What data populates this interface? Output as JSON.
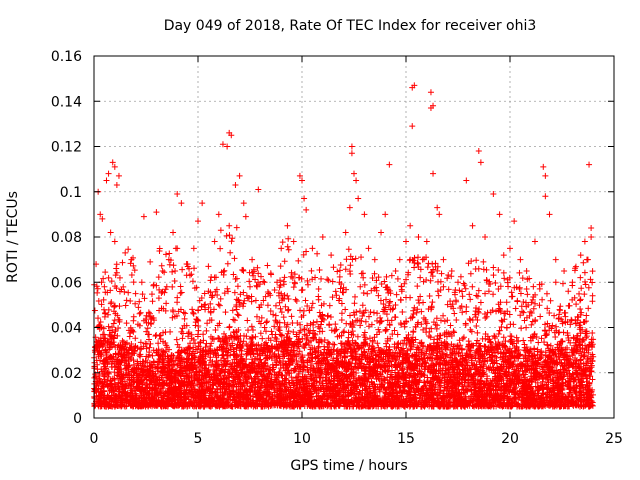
{
  "chart_data": {
    "type": "scatter",
    "title": "Day 049 of 2018, Rate Of TEC Index for receiver ohi3",
    "xlabel": "GPS time / hours",
    "ylabel": "ROTI / TECUs",
    "xlim": [
      0,
      25
    ],
    "ylim": [
      0,
      0.16
    ],
    "xticks": [
      {
        "value": 0,
        "label": "0"
      },
      {
        "value": 5,
        "label": "5"
      },
      {
        "value": 10,
        "label": "10"
      },
      {
        "value": 15,
        "label": "15"
      },
      {
        "value": 20,
        "label": "20"
      },
      {
        "value": 25,
        "label": "25"
      }
    ],
    "yticks": [
      {
        "value": 0,
        "label": "0"
      },
      {
        "value": 0.02,
        "label": "0.02"
      },
      {
        "value": 0.04,
        "label": "0.04"
      },
      {
        "value": 0.06,
        "label": "0.06"
      },
      {
        "value": 0.08,
        "label": "0.08"
      },
      {
        "value": 0.1,
        "label": "0.1"
      },
      {
        "value": 0.12,
        "label": "0.12"
      },
      {
        "value": 0.14,
        "label": "0.14"
      },
      {
        "value": 0.16,
        "label": "0.16"
      }
    ],
    "grid": true,
    "marker": "plus",
    "series": [
      {
        "name": "ROTI",
        "color": "#ff0000",
        "points": [
          [
            0.1,
            0.068
          ],
          [
            0.2,
            0.1
          ],
          [
            0.3,
            0.09
          ],
          [
            0.4,
            0.088
          ],
          [
            0.6,
            0.105
          ],
          [
            0.7,
            0.108
          ],
          [
            0.9,
            0.113
          ],
          [
            1.0,
            0.111
          ],
          [
            1.2,
            0.107
          ],
          [
            1.1,
            0.103
          ],
          [
            0.8,
            0.082
          ],
          [
            1.0,
            0.078
          ],
          [
            1.5,
            0.073
          ],
          [
            1.8,
            0.07
          ],
          [
            2.3,
            0.06
          ],
          [
            2.4,
            0.089
          ],
          [
            2.7,
            0.069
          ],
          [
            3.0,
            0.091
          ],
          [
            3.3,
            0.065
          ],
          [
            3.6,
            0.07
          ],
          [
            3.8,
            0.082
          ],
          [
            4.0,
            0.075
          ],
          [
            4.0,
            0.099
          ],
          [
            4.2,
            0.095
          ],
          [
            4.5,
            0.068
          ],
          [
            4.8,
            0.075
          ],
          [
            5.0,
            0.087
          ],
          [
            5.2,
            0.095
          ],
          [
            5.5,
            0.067
          ],
          [
            5.8,
            0.078
          ],
          [
            6.0,
            0.09
          ],
          [
            6.1,
            0.083
          ],
          [
            6.2,
            0.121
          ],
          [
            6.4,
            0.12
          ],
          [
            6.5,
            0.126
          ],
          [
            6.6,
            0.125
          ],
          [
            6.8,
            0.103
          ],
          [
            7.0,
            0.107
          ],
          [
            7.2,
            0.095
          ],
          [
            7.3,
            0.089
          ],
          [
            6.5,
            0.085
          ],
          [
            7.6,
            0.07
          ],
          [
            7.9,
            0.101
          ],
          [
            8.2,
            0.06
          ],
          [
            8.5,
            0.064
          ],
          [
            9.0,
            0.075
          ],
          [
            9.3,
            0.085
          ],
          [
            9.6,
            0.078
          ],
          [
            9.9,
            0.107
          ],
          [
            10.0,
            0.105
          ],
          [
            10.1,
            0.097
          ],
          [
            10.2,
            0.092
          ],
          [
            10.5,
            0.075
          ],
          [
            11.0,
            0.08
          ],
          [
            11.4,
            0.072
          ],
          [
            11.8,
            0.06
          ],
          [
            12.1,
            0.082
          ],
          [
            12.3,
            0.093
          ],
          [
            12.4,
            0.12
          ],
          [
            12.4,
            0.117
          ],
          [
            12.5,
            0.108
          ],
          [
            12.6,
            0.105
          ],
          [
            12.7,
            0.097
          ],
          [
            13.0,
            0.09
          ],
          [
            13.2,
            0.075
          ],
          [
            13.5,
            0.07
          ],
          [
            13.8,
            0.082
          ],
          [
            14.0,
            0.09
          ],
          [
            14.2,
            0.112
          ],
          [
            14.5,
            0.065
          ],
          [
            14.7,
            0.07
          ],
          [
            15.0,
            0.078
          ],
          [
            15.2,
            0.085
          ],
          [
            15.3,
            0.129
          ],
          [
            15.3,
            0.146
          ],
          [
            15.4,
            0.147
          ],
          [
            15.6,
            0.08
          ],
          [
            15.8,
            0.07
          ],
          [
            16.0,
            0.078
          ],
          [
            16.2,
            0.144
          ],
          [
            16.2,
            0.137
          ],
          [
            16.3,
            0.138
          ],
          [
            16.3,
            0.108
          ],
          [
            16.5,
            0.093
          ],
          [
            16.6,
            0.09
          ],
          [
            16.8,
            0.07
          ],
          [
            17.2,
            0.065
          ],
          [
            17.5,
            0.06
          ],
          [
            17.9,
            0.105
          ],
          [
            18.2,
            0.085
          ],
          [
            18.5,
            0.118
          ],
          [
            18.6,
            0.113
          ],
          [
            18.8,
            0.08
          ],
          [
            19.2,
            0.099
          ],
          [
            19.5,
            0.09
          ],
          [
            19.7,
            0.072
          ],
          [
            20.0,
            0.075
          ],
          [
            20.2,
            0.087
          ],
          [
            20.5,
            0.07
          ],
          [
            20.8,
            0.065
          ],
          [
            21.2,
            0.078
          ],
          [
            21.6,
            0.111
          ],
          [
            21.7,
            0.107
          ],
          [
            21.7,
            0.098
          ],
          [
            21.9,
            0.09
          ],
          [
            22.2,
            0.07
          ],
          [
            22.6,
            0.065
          ],
          [
            23.0,
            0.06
          ],
          [
            23.4,
            0.072
          ],
          [
            23.6,
            0.078
          ],
          [
            23.8,
            0.112
          ],
          [
            23.9,
            0.084
          ],
          [
            23.9,
            0.08
          ],
          [
            23.7,
            0.07
          ],
          [
            0.5,
            0.058
          ],
          [
            2.0,
            0.055
          ],
          [
            3.5,
            0.058
          ],
          [
            5.5,
            0.056
          ],
          [
            7.5,
            0.058
          ],
          [
            8.8,
            0.06
          ],
          [
            10.8,
            0.057
          ],
          [
            12.8,
            0.058
          ],
          [
            14.8,
            0.056
          ],
          [
            16.8,
            0.058
          ],
          [
            18.8,
            0.055
          ],
          [
            20.8,
            0.057
          ],
          [
            22.8,
            0.056
          ]
        ]
      }
    ],
    "density": {
      "description": "dense ROTI band across all hours",
      "bins": [
        {
          "x": [
            0,
            1
          ],
          "base": [
            0.005,
            0.035
          ],
          "spike_max": 0.065
        },
        {
          "x": [
            1,
            2
          ],
          "base": [
            0.005,
            0.032
          ],
          "spike_max": 0.075
        },
        {
          "x": [
            2,
            3
          ],
          "base": [
            0.005,
            0.025
          ],
          "spike_max": 0.06
        },
        {
          "x": [
            3,
            4
          ],
          "base": [
            0.005,
            0.028
          ],
          "spike_max": 0.075
        },
        {
          "x": [
            4,
            5
          ],
          "base": [
            0.005,
            0.03
          ],
          "spike_max": 0.07
        },
        {
          "x": [
            5,
            6
          ],
          "base": [
            0.005,
            0.03
          ],
          "spike_max": 0.065
        },
        {
          "x": [
            6,
            7
          ],
          "base": [
            0.005,
            0.035
          ],
          "spike_max": 0.085
        },
        {
          "x": [
            7,
            8
          ],
          "base": [
            0.005,
            0.032
          ],
          "spike_max": 0.07
        },
        {
          "x": [
            8,
            9
          ],
          "base": [
            0.005,
            0.032
          ],
          "spike_max": 0.068
        },
        {
          "x": [
            9,
            10
          ],
          "base": [
            0.005,
            0.035
          ],
          "spike_max": 0.08
        },
        {
          "x": [
            10,
            11
          ],
          "base": [
            0.005,
            0.035
          ],
          "spike_max": 0.075
        },
        {
          "x": [
            11,
            12
          ],
          "base": [
            0.005,
            0.03
          ],
          "spike_max": 0.068
        },
        {
          "x": [
            12,
            13
          ],
          "base": [
            0.005,
            0.033
          ],
          "spike_max": 0.075
        },
        {
          "x": [
            13,
            14
          ],
          "base": [
            0.005,
            0.03
          ],
          "spike_max": 0.065
        },
        {
          "x": [
            14,
            15
          ],
          "base": [
            0.005,
            0.032
          ],
          "spike_max": 0.065
        },
        {
          "x": [
            15,
            16
          ],
          "base": [
            0.005,
            0.035
          ],
          "spike_max": 0.075
        },
        {
          "x": [
            16,
            17
          ],
          "base": [
            0.005,
            0.033
          ],
          "spike_max": 0.07
        },
        {
          "x": [
            17,
            18
          ],
          "base": [
            0.005,
            0.03
          ],
          "spike_max": 0.065
        },
        {
          "x": [
            18,
            19
          ],
          "base": [
            0.005,
            0.032
          ],
          "spike_max": 0.07
        },
        {
          "x": [
            19,
            20
          ],
          "base": [
            0.005,
            0.032
          ],
          "spike_max": 0.068
        },
        {
          "x": [
            20,
            21
          ],
          "base": [
            0.005,
            0.03
          ],
          "spike_max": 0.065
        },
        {
          "x": [
            21,
            22
          ],
          "base": [
            0.005,
            0.028
          ],
          "spike_max": 0.06
        },
        {
          "x": [
            22,
            23
          ],
          "base": [
            0.005,
            0.03
          ],
          "spike_max": 0.062
        },
        {
          "x": [
            23,
            24
          ],
          "base": [
            0.005,
            0.035
          ],
          "spike_max": 0.07
        }
      ]
    }
  }
}
